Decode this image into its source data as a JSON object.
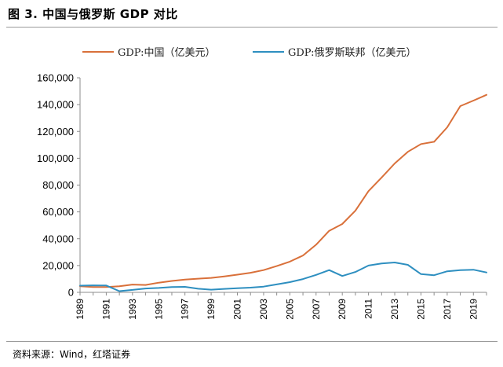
{
  "figure": {
    "title": "图 3. 中国与俄罗斯 GDP 对比",
    "source": "资料来源：Wind，红塔证券"
  },
  "chart_data": {
    "type": "line",
    "title": "",
    "xlabel": "",
    "ylabel": "",
    "ylim": [
      0,
      160000
    ],
    "yticks": [
      0,
      20000,
      40000,
      60000,
      80000,
      100000,
      120000,
      140000,
      160000
    ],
    "ytick_labels": [
      "0",
      "20,000",
      "40,000",
      "60,000",
      "80,000",
      "100,000",
      "120,000",
      "140,000",
      "160,000"
    ],
    "xtick_labels": [
      "1989",
      "1991",
      "1993",
      "1995",
      "1997",
      "1999",
      "2001",
      "2003",
      "2005",
      "2007",
      "2009",
      "2011",
      "2013",
      "2015",
      "2017",
      "2019"
    ],
    "grid": false,
    "legend_position": "top",
    "x": [
      1989,
      1990,
      1991,
      1992,
      1993,
      1994,
      1995,
      1996,
      1997,
      1998,
      1999,
      2000,
      2001,
      2002,
      2003,
      2004,
      2005,
      2006,
      2007,
      2008,
      2009,
      2010,
      2011,
      2012,
      2013,
      2014,
      2015,
      2016,
      2017,
      2018,
      2019,
      2020
    ],
    "series": [
      {
        "name": "GDP:中国（亿美元）",
        "color": "#d9703a",
        "values": [
          4500,
          3900,
          4000,
          4500,
          5800,
          5500,
          7200,
          8500,
          9500,
          10200,
          10800,
          11900,
          13200,
          14600,
          16600,
          19600,
          22900,
          27500,
          35500,
          45900,
          51000,
          60900,
          75500,
          85600,
          96100,
          104800,
          110600,
          112300,
          123100,
          138900,
          143000,
          147300
        ]
      },
      {
        "name": "GDP:俄罗斯联邦（亿美元）",
        "color": "#2e8fc0",
        "values": [
          5000,
          5200,
          5100,
          900,
          1800,
          2900,
          3300,
          3900,
          4100,
          2700,
          2000,
          2600,
          3100,
          3500,
          4300,
          5900,
          7600,
          9900,
          13000,
          16600,
          12200,
          15200,
          20000,
          21500,
          22300,
          20500,
          13600,
          12800,
          15700,
          16600,
          16900,
          14800
        ]
      }
    ]
  }
}
